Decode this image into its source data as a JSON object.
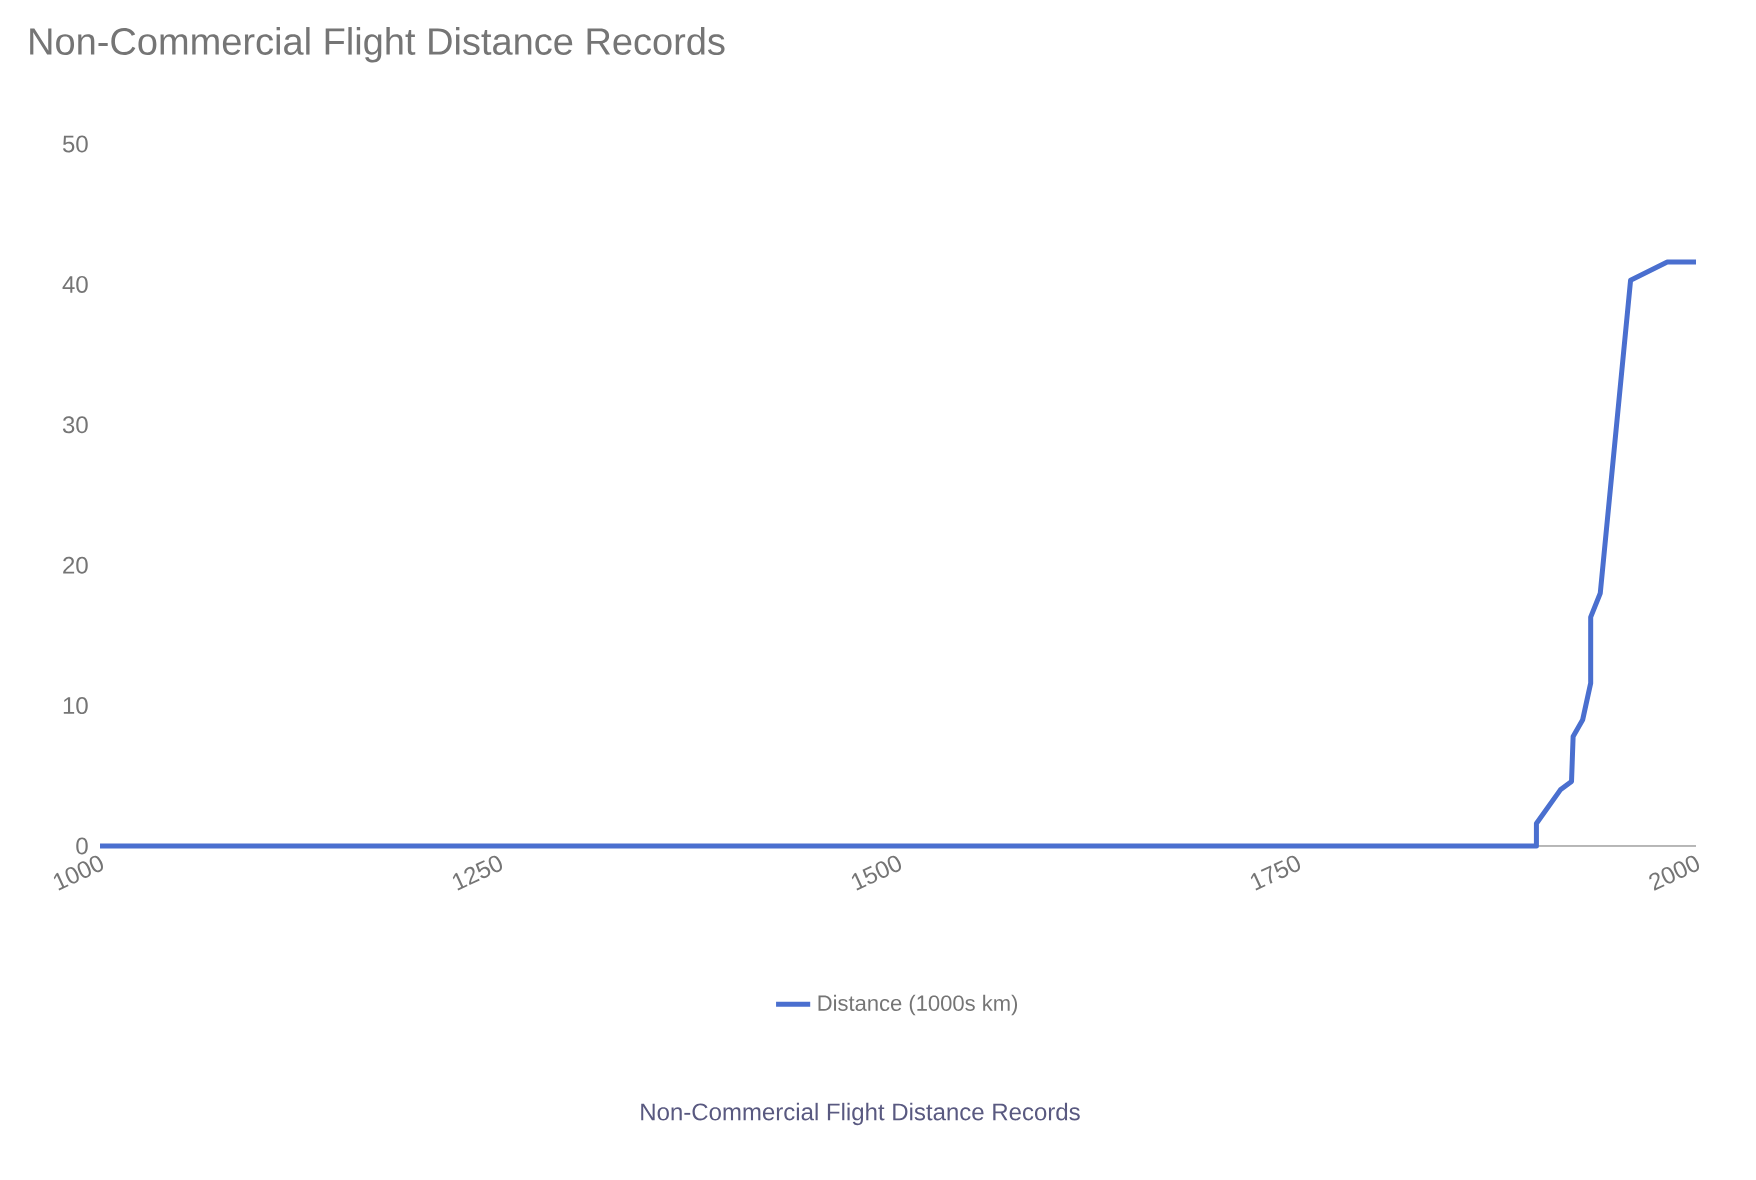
{
  "chart_data": {
    "type": "line",
    "title": "Non-Commercial Flight Distance Records",
    "annotations": [
      "Non-Commercial Flight Distance Records"
    ],
    "x": [
      1000,
      1900,
      1900,
      1915,
      1922,
      1923,
      1929,
      1934,
      1934,
      1940,
      1959,
      1982,
      2000
    ],
    "series": [
      {
        "name": "Distance (1000s km)",
        "color": "#4a6fcf",
        "values": [
          0,
          0,
          1.6,
          4.0,
          4.6,
          7.8,
          9.0,
          11.6,
          16.3,
          18.0,
          40.3,
          41.6,
          41.6
        ]
      }
    ],
    "xlim": [
      1000,
      2000
    ],
    "xticks": [
      1000,
      1250,
      1500,
      1750,
      2000
    ],
    "ylim": [
      0,
      50
    ],
    "yticks": [
      0,
      10,
      20,
      30,
      40,
      50
    ],
    "grid": false,
    "legend": "bottom",
    "marker": "none",
    "line_style": "solid"
  }
}
